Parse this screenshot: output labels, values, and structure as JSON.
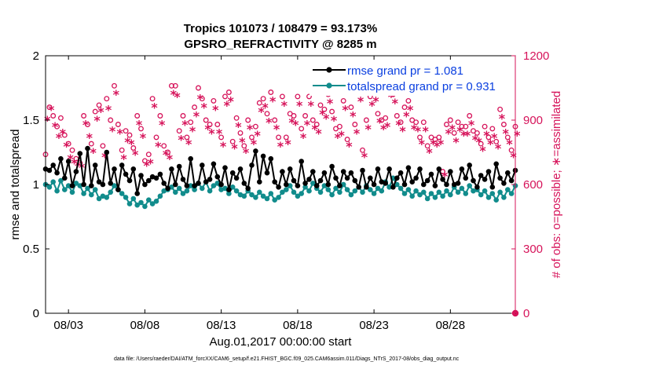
{
  "chart_data": {
    "type": "line",
    "title": "Tropics 101073 / 108479 = 93.173%",
    "subtitle": "GPSRO_REFRACTIVITY @ 8285 m",
    "xlabel": "Aug.01,2017 00:00:00 start",
    "ylabel": "rmse and totalspread",
    "ylabel_right": "# of obs: o=possible; ∗=assimilated",
    "footer": "data file: /Users/raeder/DAI/ATM_forcXX/CAM6_setup/f.e21.FHIST_BGC.f09_025.CAM6assim.011/Diags_NTrS_2017-08/obs_diag_output.nc",
    "xlim": [
      1.5,
      32.25
    ],
    "ylim": [
      0,
      2
    ],
    "ylim_right": [
      0,
      1200
    ],
    "xticks": [
      3,
      8,
      13,
      18,
      23,
      28
    ],
    "xtick_labels": [
      "08/03",
      "08/08",
      "08/13",
      "08/18",
      "08/23",
      "08/28"
    ],
    "yticks": [
      0,
      0.5,
      1,
      1.5,
      2
    ],
    "ytick_labels": [
      "0",
      "0.5",
      "1",
      "1.5",
      "2"
    ],
    "yticks_right": [
      0,
      300,
      600,
      900,
      1200
    ],
    "ytick_labels_right": [
      "0",
      "300",
      "600",
      "900",
      "1200"
    ],
    "x_start": 1.5,
    "x_step": 0.25,
    "legend": {
      "position": "top-right",
      "entries": [
        "rmse grand pr = 1.081",
        "totalspread grand pr = 0.931"
      ]
    },
    "colors": {
      "rmse": "#000000",
      "totalspread": "#118c8c",
      "obs": "#d6135a",
      "legend_text": "#0a3fe0"
    },
    "series": [
      {
        "name": "rmse",
        "values": [
          1.12,
          1.11,
          1.15,
          1.09,
          1.2,
          1.05,
          1.18,
          0.99,
          1.1,
          1.24,
          1.0,
          1.28,
          0.99,
          1.15,
          1.02,
          1.0,
          1.25,
          1.01,
          1.12,
          0.96,
          1.15,
          1.08,
          1.03,
          1.12,
          0.93,
          1.07,
          1.0,
          1.03,
          1.06,
          1.05,
          1.08,
          1.01,
          0.97,
          1.12,
          1.0,
          1.14,
          1.04,
          0.99,
          1.2,
          0.99,
          1.01,
          1.15,
          1.02,
          1.04,
          1.16,
          1.06,
          1.0,
          1.13,
          0.96,
          1.09,
          1.05,
          1.12,
          1.01,
          0.97,
          1.15,
          1.26,
          1.02,
          1.22,
          1.09,
          1.2,
          1.02,
          0.98,
          1.1,
          1.0,
          1.12,
          1.03,
          0.99,
          1.18,
          1.01,
          1.04,
          1.1,
          0.99,
          1.03,
          1.09,
          1.0,
          1.14,
          1.05,
          0.99,
          1.1,
          1.05,
          1.09,
          1.03,
          0.98,
          1.11,
          0.98,
          1.05,
          1.0,
          1.12,
          1.02,
          1.01,
          1.12,
          0.98,
          1.05,
          1.09,
          1.0,
          1.13,
          1.02,
          1.05,
          1.12,
          1.0,
          1.03,
          1.08,
          0.99,
          1.12,
          1.04,
          1.0,
          1.1,
          1.0,
          1.01,
          1.12,
          1.05,
          1.15,
          1.03,
          0.98,
          1.07,
          1.04,
          1.1,
          0.98,
          1.16,
          1.05,
          1.01,
          1.09,
          1.03,
          1.11
        ],
        "y_axis": "left"
      },
      {
        "name": "totalspread",
        "values": [
          1.0,
          0.98,
          1.02,
          0.95,
          1.03,
          0.96,
          0.99,
          0.94,
          1.01,
          0.99,
          0.93,
          0.97,
          0.92,
          0.96,
          0.89,
          0.91,
          0.9,
          0.94,
          0.99,
          0.96,
          0.93,
          0.9,
          0.85,
          0.89,
          0.84,
          0.86,
          0.83,
          0.88,
          0.85,
          0.87,
          0.91,
          0.95,
          0.96,
          0.98,
          0.94,
          0.97,
          0.93,
          0.95,
          0.99,
          0.96,
          1.01,
          0.97,
          1.02,
          0.95,
          0.99,
          1.01,
          0.96,
          0.97,
          0.93,
          0.98,
          0.95,
          0.92,
          0.91,
          0.95,
          0.92,
          0.9,
          0.94,
          0.91,
          0.89,
          0.93,
          0.88,
          0.9,
          0.94,
          0.96,
          0.99,
          0.94,
          0.91,
          0.93,
          0.98,
          0.95,
          1.01,
          0.97,
          0.94,
          0.99,
          0.96,
          0.92,
          0.97,
          0.94,
          1.0,
          0.96,
          0.92,
          0.95,
          0.98,
          0.94,
          0.99,
          0.96,
          0.93,
          0.97,
          0.95,
          1.02,
          0.98,
          1.05,
          1.0,
          0.97,
          0.93,
          0.96,
          0.91,
          0.95,
          0.92,
          0.94,
          0.89,
          0.93,
          0.9,
          0.94,
          0.91,
          0.95,
          0.92,
          0.98,
          0.94,
          0.97,
          0.93,
          0.99,
          0.95,
          0.96,
          0.92,
          0.95,
          0.9,
          0.93,
          0.88,
          0.94,
          0.9,
          0.96,
          0.93,
          0.99
        ],
        "y_axis": "left"
      },
      {
        "name": "possible",
        "values": [
          740,
          960,
          920,
          870,
          910,
          830,
          790,
          760,
          720,
          700,
          920,
          880,
          790,
          940,
          970,
          780,
          1000,
          900,
          1060,
          880,
          760,
          850,
          830,
          770,
          920,
          860,
          710,
          740,
          1000,
          820,
          920,
          780,
          750,
          1060,
          1060,
          850,
          920,
          820,
          890,
          960,
          1050,
          1000,
          900,
          880,
          990,
          880,
          820,
          1010,
          1030,
          800,
          910,
          840,
          780,
          900,
          820,
          870,
          980,
          1000,
          930,
          1030,
          900,
          820,
          1010,
          820,
          930,
          920,
          1010,
          860,
          920,
          1010,
          900,
          880,
          970,
          950,
          1020,
          940,
          860,
          870,
          990,
          810,
          960,
          880,
          1030,
          760,
          900,
          1010,
          1030,
          930,
          900,
          910,
          1050,
          1020,
          920,
          890,
          960,
          990,
          900,
          890,
          820,
          890,
          780,
          820,
          810,
          820,
          660,
          880,
          900,
          840,
          890,
          870,
          870,
          920,
          850,
          840,
          790,
          870,
          820,
          860,
          800,
          950,
          880,
          820,
          760,
          870
        ],
        "y_axis": "right",
        "marker": "o"
      },
      {
        "name": "assimilated",
        "values": [
          900,
          950,
          870,
          820,
          840,
          780,
          720,
          700,
          690,
          680,
          880,
          820,
          750,
          900,
          940,
          730,
          950,
          850,
          1020,
          840,
          720,
          800,
          790,
          740,
          880,
          820,
          690,
          700,
          960,
          780,
          880,
          740,
          720,
          1020,
          1010,
          810,
          880,
          790,
          850,
          920,
          1000,
          960,
          860,
          840,
          950,
          840,
          780,
          970,
          990,
          770,
          870,
          800,
          750,
          860,
          790,
          830,
          940,
          960,
          890,
          990,
          860,
          780,
          970,
          790,
          890,
          880,
          970,
          820,
          880,
          970,
          860,
          840,
          930,
          910,
          980,
          900,
          820,
          830,
          950,
          780,
          920,
          840,
          990,
          730,
          860,
          970,
          990,
          890,
          860,
          870,
          1010,
          980,
          880,
          850,
          920,
          950,
          860,
          850,
          790,
          850,
          750,
          790,
          780,
          790,
          640,
          840,
          860,
          800,
          850,
          830,
          830,
          880,
          810,
          800,
          760,
          830,
          790,
          820,
          770,
          910,
          840,
          790,
          730,
          830
        ],
        "y_axis": "right",
        "marker": "*"
      }
    ]
  }
}
